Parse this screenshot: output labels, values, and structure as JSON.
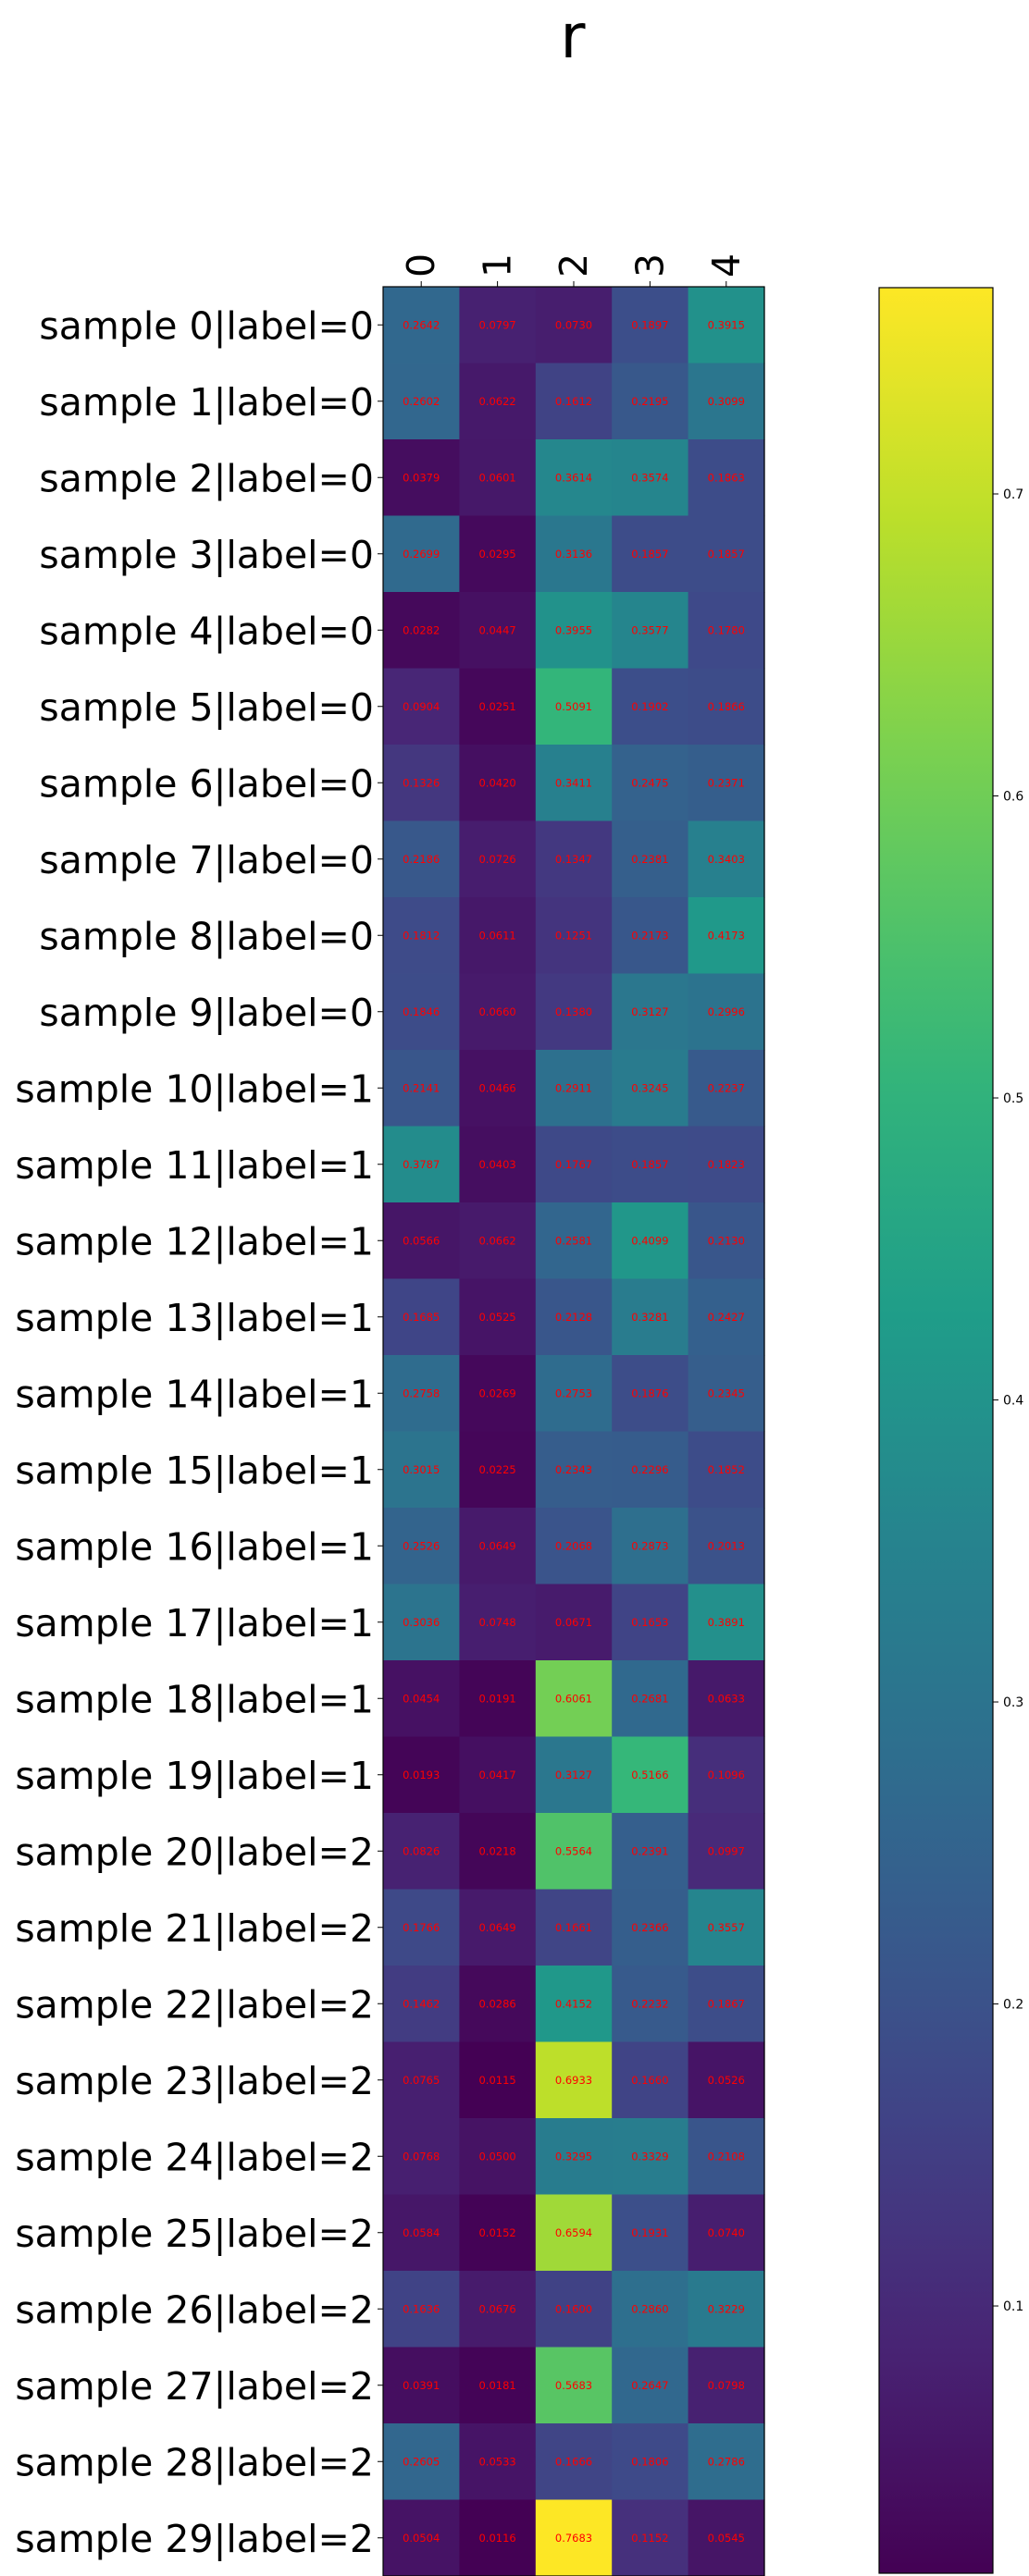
{
  "chart_data": {
    "type": "heatmap",
    "title": "r",
    "columns": [
      "0",
      "1",
      "2",
      "3",
      "4"
    ],
    "rows": [
      "sample 0|label=0",
      "sample 1|label=0",
      "sample 2|label=0",
      "sample 3|label=0",
      "sample 4|label=0",
      "sample 5|label=0",
      "sample 6|label=0",
      "sample 7|label=0",
      "sample 8|label=0",
      "sample 9|label=0",
      "sample 10|label=1",
      "sample 11|label=1",
      "sample 12|label=1",
      "sample 13|label=1",
      "sample 14|label=1",
      "sample 15|label=1",
      "sample 16|label=1",
      "sample 17|label=1",
      "sample 18|label=1",
      "sample 19|label=1",
      "sample 20|label=2",
      "sample 21|label=2",
      "sample 22|label=2",
      "sample 23|label=2",
      "sample 24|label=2",
      "sample 25|label=2",
      "sample 26|label=2",
      "sample 27|label=2",
      "sample 28|label=2",
      "sample 29|label=2"
    ],
    "values": [
      [
        0.2642,
        0.0797,
        0.073,
        0.1897,
        0.3915
      ],
      [
        0.2602,
        0.0622,
        0.1612,
        0.2195,
        0.3099
      ],
      [
        0.0379,
        0.0601,
        0.3614,
        0.3574,
        0.1863
      ],
      [
        0.2699,
        0.0295,
        0.3136,
        0.1857,
        0.1857
      ],
      [
        0.0282,
        0.0447,
        0.3955,
        0.3577,
        0.178
      ],
      [
        0.0904,
        0.0251,
        0.5091,
        0.1902,
        0.1866
      ],
      [
        0.1326,
        0.042,
        0.3411,
        0.2475,
        0.2371
      ],
      [
        0.2186,
        0.0726,
        0.1347,
        0.2381,
        0.3403
      ],
      [
        0.1812,
        0.0611,
        0.1251,
        0.2173,
        0.4173
      ],
      [
        0.1846,
        0.066,
        0.138,
        0.3127,
        0.2996
      ],
      [
        0.2141,
        0.0466,
        0.2911,
        0.3245,
        0.2237
      ],
      [
        0.3787,
        0.0403,
        0.1767,
        0.1857,
        0.1823
      ],
      [
        0.0566,
        0.0662,
        0.2581,
        0.4099,
        0.213
      ],
      [
        0.1685,
        0.0525,
        0.2128,
        0.3281,
        0.2427
      ],
      [
        0.2758,
        0.0269,
        0.2753,
        0.1876,
        0.2345
      ],
      [
        0.3015,
        0.0225,
        0.2343,
        0.2296,
        0.1852
      ],
      [
        0.2526,
        0.0649,
        0.2068,
        0.2873,
        0.2013
      ],
      [
        0.3036,
        0.0748,
        0.0671,
        0.1653,
        0.3891
      ],
      [
        0.0454,
        0.0191,
        0.6061,
        0.2681,
        0.0633
      ],
      [
        0.0193,
        0.0417,
        0.3127,
        0.5166,
        0.1096
      ],
      [
        0.0826,
        0.0218,
        0.5564,
        0.2391,
        0.0997
      ],
      [
        0.1766,
        0.0649,
        0.1661,
        0.2366,
        0.3557
      ],
      [
        0.1462,
        0.0286,
        0.4152,
        0.2232,
        0.1867
      ],
      [
        0.0765,
        0.0115,
        0.6933,
        0.166,
        0.0526
      ],
      [
        0.0768,
        0.05,
        0.3295,
        0.3329,
        0.2108
      ],
      [
        0.0584,
        0.0152,
        0.6594,
        0.1931,
        0.074
      ],
      [
        0.1636,
        0.0676,
        0.16,
        0.286,
        0.3229
      ],
      [
        0.0391,
        0.0181,
        0.5683,
        0.2647,
        0.0798
      ],
      [
        0.2605,
        0.0533,
        0.1666,
        0.1806,
        0.2786
      ],
      [
        0.0504,
        0.0116,
        0.7683,
        0.1152,
        0.0545
      ]
    ],
    "annotations_color": "#ff0000",
    "colormap": "viridis",
    "vmin": 0.0115,
    "vmax": 0.7683,
    "colorbar": {
      "ticks": [
        0.1,
        0.2,
        0.3,
        0.4,
        0.5,
        0.6,
        0.7
      ],
      "tick_labels": [
        "0.1",
        "0.2",
        "0.3",
        "0.4",
        "0.5",
        "0.6",
        "0.7"
      ]
    },
    "legend_position": "right"
  }
}
